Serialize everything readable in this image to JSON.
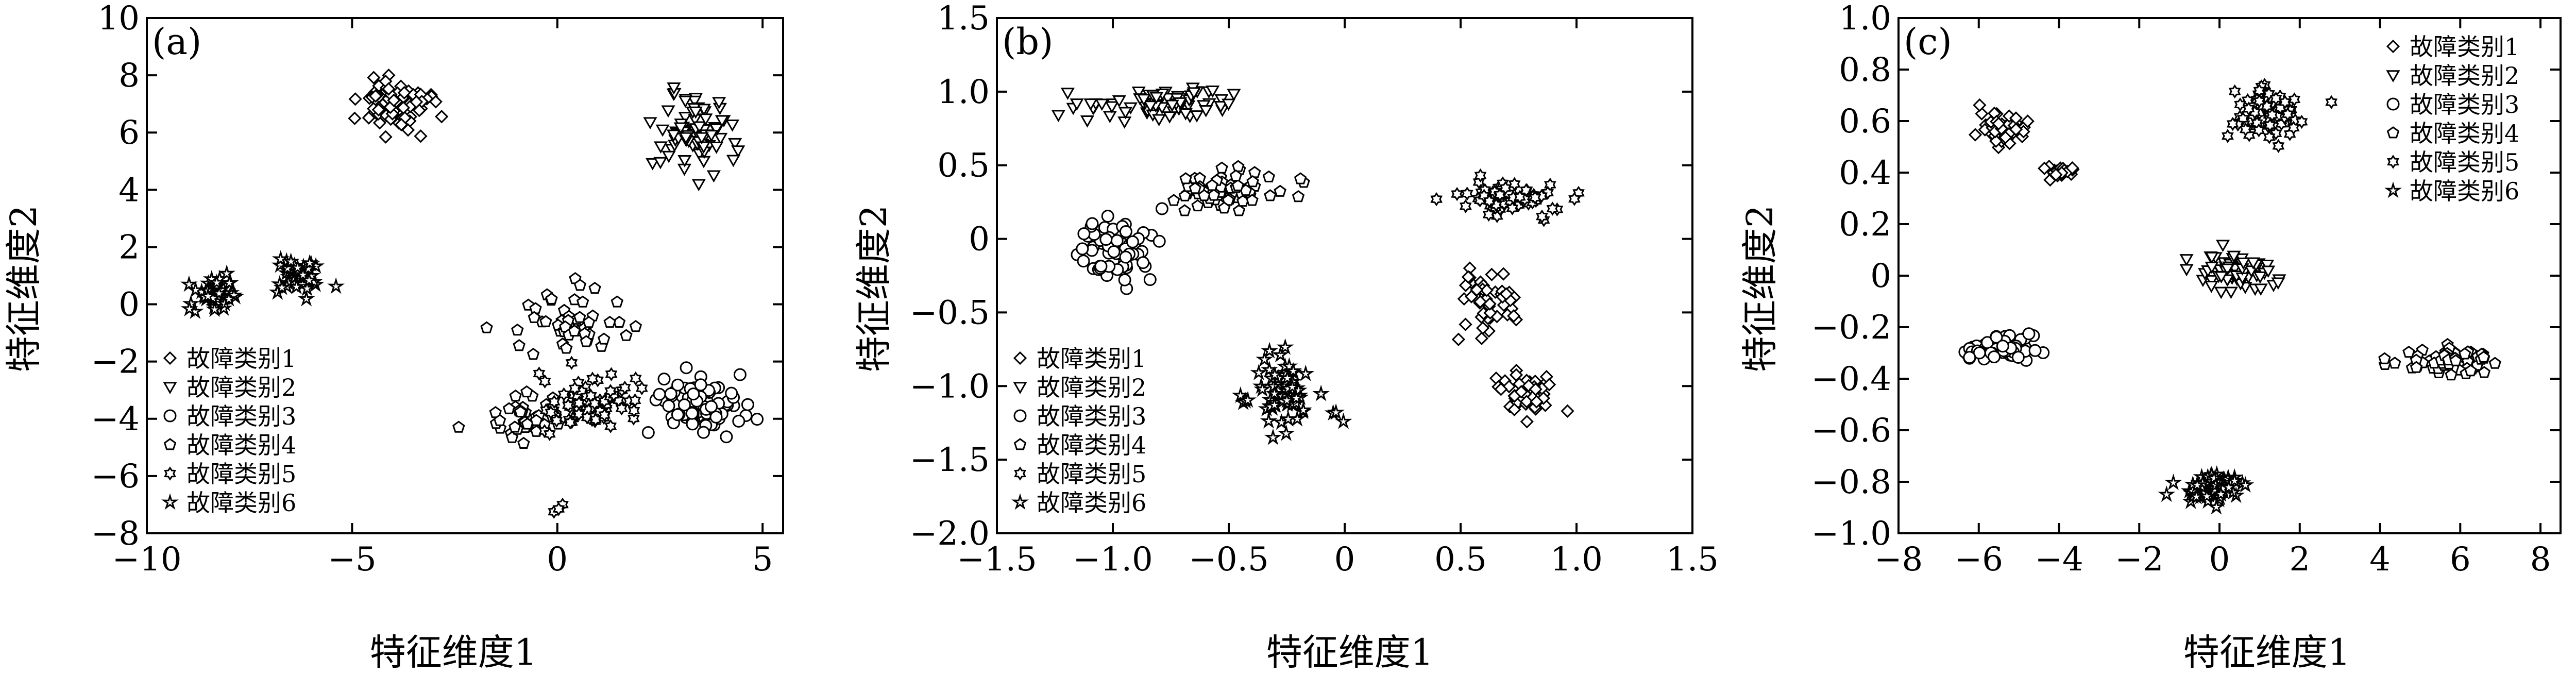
{
  "figure": {
    "y_label": "特征维度2",
    "x_label": "特征维度1"
  },
  "marker_shapes": [
    "diamond",
    "triangle-down",
    "circle",
    "pentagon",
    "hexagram",
    "star"
  ],
  "chart_data": [
    {
      "type": "scatter",
      "panel_label": "(a)",
      "xlim": [
        -10,
        5.5
      ],
      "ylim": [
        -8,
        10
      ],
      "xticks": [
        -10,
        -5,
        0,
        5
      ],
      "yticks": [
        -8,
        -6,
        -4,
        -2,
        0,
        2,
        4,
        6,
        8,
        10
      ],
      "xtick_labels": [
        "−10",
        "−5",
        "0",
        "5"
      ],
      "ytick_labels": [
        "−8",
        "−6",
        "−4",
        "−2",
        "0",
        "2",
        "4",
        "6",
        "8",
        "10"
      ],
      "legend_placement": "bottom-left",
      "series": [
        {
          "name": "故障类别1",
          "clusters": [
            {
              "center": [
                -4.0,
                7.0
              ],
              "spread": [
                0.8,
                0.8
              ],
              "n": 80
            }
          ]
        },
        {
          "name": "故障类别2",
          "clusters": [
            {
              "center": [
                3.3,
                6.0
              ],
              "spread": [
                0.9,
                1.2
              ],
              "n": 80
            }
          ]
        },
        {
          "name": "故障类别3",
          "clusters": [
            {
              "center": [
                3.5,
                -3.5
              ],
              "spread": [
                0.9,
                1.0
              ],
              "n": 80
            }
          ]
        },
        {
          "name": "故障类别4",
          "clusters": [
            {
              "center": [
                0.3,
                -0.8
              ],
              "spread": [
                1.2,
                1.2
              ],
              "n": 50
            },
            {
              "center": [
                -1.0,
                -4.0
              ],
              "spread": [
                0.9,
                0.8
              ],
              "n": 40
            }
          ]
        },
        {
          "name": "故障类别5",
          "clusters": [
            {
              "center": [
                0.8,
                -3.5
              ],
              "spread": [
                1.2,
                0.9
              ],
              "n": 70
            },
            {
              "center": [
                0.0,
                -7.0
              ],
              "spread": [
                0.3,
                0.3
              ],
              "n": 3
            }
          ]
        },
        {
          "name": "故障类别6",
          "clusters": [
            {
              "center": [
                -8.4,
                0.3
              ],
              "spread": [
                0.5,
                0.6
              ],
              "n": 40
            },
            {
              "center": [
                -6.2,
                1.0
              ],
              "spread": [
                0.6,
                0.5
              ],
              "n": 40
            }
          ]
        }
      ]
    },
    {
      "type": "scatter",
      "panel_label": "(b)",
      "xlim": [
        -1.5,
        1.5
      ],
      "ylim": [
        -2.0,
        1.5
      ],
      "xticks": [
        -1.5,
        -1.0,
        -0.5,
        0,
        0.5,
        1.0,
        1.5
      ],
      "yticks": [
        -2.0,
        -1.5,
        -1.0,
        -0.5,
        0,
        0.5,
        1.0,
        1.5
      ],
      "xtick_labels": [
        "−1.5",
        "−1.0",
        "−0.5",
        "0",
        "0.5",
        "1.0",
        "1.5"
      ],
      "ytick_labels": [
        "−2.0",
        "−1.5",
        "−1.0",
        "−0.5",
        "0",
        "0.5",
        "1.0",
        "1.5"
      ],
      "legend_placement": "bottom-left",
      "series": [
        {
          "name": "故障类别1",
          "clusters": [
            {
              "center": [
                0.62,
                -0.45
              ],
              "spread": [
                0.12,
                0.25
              ],
              "n": 45
            },
            {
              "center": [
                0.78,
                -1.05
              ],
              "spread": [
                0.12,
                0.14
              ],
              "n": 45
            }
          ]
        },
        {
          "name": "故障类别2",
          "clusters": [
            {
              "center": [
                -0.8,
                0.93
              ],
              "spread": [
                0.3,
                0.1
              ],
              "n": 70
            }
          ]
        },
        {
          "name": "故障类别3",
          "clusters": [
            {
              "center": [
                -1.0,
                -0.05
              ],
              "spread": [
                0.14,
                0.22
              ],
              "n": 70
            }
          ]
        },
        {
          "name": "故障类别4",
          "clusters": [
            {
              "center": [
                -0.5,
                0.33
              ],
              "spread": [
                0.2,
                0.12
              ],
              "n": 70
            }
          ]
        },
        {
          "name": "故障类别5",
          "clusters": [
            {
              "center": [
                0.7,
                0.28
              ],
              "spread": [
                0.22,
                0.1
              ],
              "n": 70
            }
          ]
        },
        {
          "name": "故障类别6",
          "clusters": [
            {
              "center": [
                -0.25,
                -1.05
              ],
              "spread": [
                0.15,
                0.25
              ],
              "n": 70
            }
          ]
        }
      ]
    },
    {
      "type": "scatter",
      "panel_label": "(c)",
      "xlim": [
        -8,
        8.5
      ],
      "ylim": [
        -1.0,
        1.0
      ],
      "xticks": [
        -8,
        -6,
        -4,
        -2,
        0,
        2,
        4,
        6,
        8
      ],
      "yticks": [
        -1.0,
        -0.8,
        -0.6,
        -0.4,
        -0.2,
        0,
        0.2,
        0.4,
        0.6,
        0.8,
        1.0
      ],
      "xtick_labels": [
        "−8",
        "−6",
        "−4",
        "−2",
        "0",
        "2",
        "4",
        "6",
        "8"
      ],
      "ytick_labels": [
        "−1.0",
        "−0.8",
        "−0.6",
        "−0.4",
        "−0.2",
        "0",
        "0.2",
        "0.4",
        "0.6",
        "0.8",
        "1.0"
      ],
      "legend_placement": "top-right",
      "series": [
        {
          "name": "故障类别1",
          "clusters": [
            {
              "center": [
                -5.4,
                0.57
              ],
              "spread": [
                0.55,
                0.06
              ],
              "n": 40
            },
            {
              "center": [
                -3.9,
                0.4
              ],
              "spread": [
                0.4,
                0.03
              ],
              "n": 25
            }
          ]
        },
        {
          "name": "故障类别2",
          "clusters": [
            {
              "center": [
                0.3,
                0.02
              ],
              "spread": [
                0.9,
                0.06
              ],
              "n": 70
            }
          ]
        },
        {
          "name": "故障类别3",
          "clusters": [
            {
              "center": [
                -5.5,
                -0.28
              ],
              "spread": [
                0.8,
                0.05
              ],
              "n": 70
            }
          ]
        },
        {
          "name": "故障类别4",
          "clusters": [
            {
              "center": [
                5.8,
                -0.33
              ],
              "spread": [
                1.0,
                0.05
              ],
              "n": 70
            }
          ]
        },
        {
          "name": "故障类别5",
          "clusters": [
            {
              "center": [
                1.2,
                0.63
              ],
              "spread": [
                0.9,
                0.08
              ],
              "n": 70
            }
          ]
        },
        {
          "name": "故障类别6",
          "clusters": [
            {
              "center": [
                -0.2,
                -0.82
              ],
              "spread": [
                0.8,
                0.05
              ],
              "n": 70
            }
          ]
        }
      ]
    }
  ]
}
